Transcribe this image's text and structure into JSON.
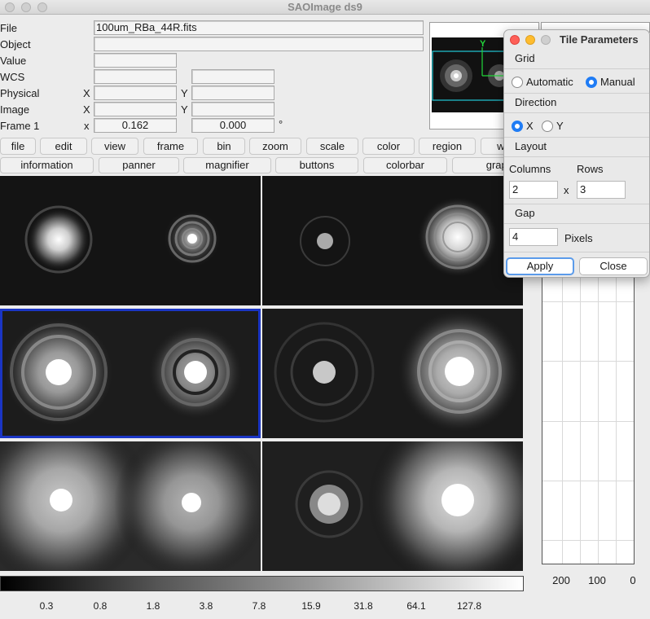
{
  "window": {
    "title": "SAOImage ds9"
  },
  "info": {
    "file_label": "File",
    "file_value": "100um_RBa_44R.fits",
    "object_label": "Object",
    "object_value": "",
    "value_label": "Value",
    "value_value": "",
    "wcs_label": "WCS",
    "physical_label": "Physical",
    "image_label": "Image",
    "frame_label": "Frame 1",
    "x_upper": "X",
    "y_upper": "Y",
    "x_lower": "x",
    "zoom_value": "0.162",
    "angle_value": "0.000",
    "degree_symbol": "°"
  },
  "panner": {
    "x_label": "Y"
  },
  "menu": [
    "file",
    "edit",
    "view",
    "frame",
    "bin",
    "zoom",
    "scale",
    "color",
    "region",
    "wc"
  ],
  "buttons": [
    "information",
    "panner",
    "magnifier",
    "buttons",
    "colorbar",
    "graph"
  ],
  "colorbar": {
    "ticks": [
      "0.3",
      "0.8",
      "1.8",
      "3.8",
      "7.8",
      "15.9",
      "31.8",
      "64.1",
      "127.8"
    ]
  },
  "graph": {
    "ticks": [
      "200",
      "100",
      "0"
    ]
  },
  "dialog": {
    "title": "Tile Parameters",
    "grid_label": "Grid",
    "grid_options": [
      "Automatic",
      "Manual"
    ],
    "grid_selected": "Manual",
    "direction_label": "Direction",
    "direction_options": [
      "X",
      "Y"
    ],
    "direction_selected": "X",
    "layout_label": "Layout",
    "columns_label": "Columns",
    "rows_label": "Rows",
    "columns_value": "2",
    "times": "x",
    "rows_value": "3",
    "gap_label": "Gap",
    "gap_value": "4",
    "pixels_label": "Pixels",
    "apply_label": "Apply",
    "close_label": "Close"
  },
  "colors": {
    "current_frame": "#1a35c4",
    "radio_selected": "#1f7cf5",
    "close_dot": "#fe5f57",
    "min_dot": "#febc2e"
  }
}
